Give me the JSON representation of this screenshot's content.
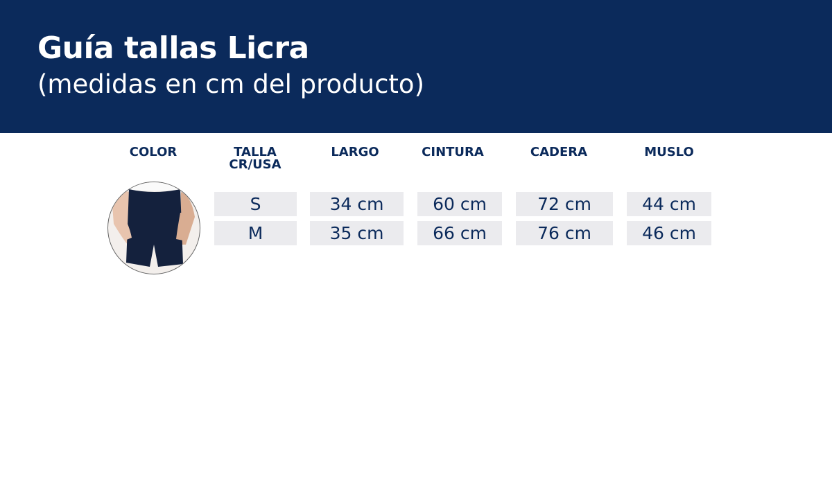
{
  "header": {
    "title": "Guía tallas Licra",
    "subtitle": "(medidas en cm del producto)"
  },
  "table": {
    "columns": [
      "COLOR",
      "TALLA\nCR/USA",
      "LARGO",
      "CINTURA",
      "CADERA",
      "MUSLO"
    ],
    "talla_line1": "TALLA",
    "talla_line2": "CR/USA",
    "rows": [
      {
        "talla": "S",
        "largo": "34 cm",
        "cintura": "60 cm",
        "cadera": "72 cm",
        "muslo": "44 cm"
      },
      {
        "talla": "M",
        "largo": "35 cm",
        "cintura": "66 cm",
        "cadera": "76 cm",
        "muslo": "46 cm"
      }
    ],
    "product_color": "#14213d"
  }
}
